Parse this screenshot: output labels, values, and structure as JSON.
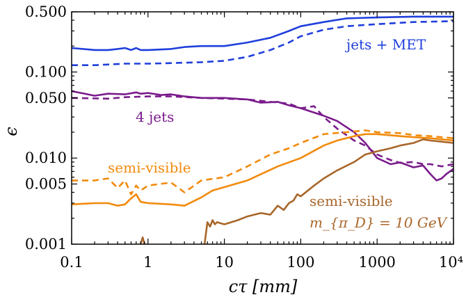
{
  "chart_data": {
    "type": "line",
    "title": "",
    "xlabel": "cτ [mm]",
    "ylabel": "ϵ",
    "xscale": "log",
    "yscale": "log",
    "xlim": [
      0.1,
      10000
    ],
    "ylim": [
      0.001,
      0.5
    ],
    "grid": false,
    "x_tick_labels": [
      "0.1",
      "1",
      "10",
      "100",
      "1000",
      "10⁴"
    ],
    "y_tick_labels": [
      "0.001",
      "0.005",
      "0.010",
      "0.050",
      "0.100",
      "0.500"
    ],
    "annotations": [
      {
        "text": "jets + MET",
        "color": "#1f3fdc"
      },
      {
        "text": "4 jets",
        "color": "#7a1b8c"
      },
      {
        "text": "semi-visible",
        "color": "#f28a0c"
      },
      {
        "text": "semi-visible",
        "color": "#a8662a"
      },
      {
        "text": "m_{π_D} = 10 GeV",
        "color": "#a8662a"
      }
    ],
    "series": [
      {
        "color": "#1f3fdc",
        "dash": "solid",
        "x": [
          0.1,
          0.2,
          0.3,
          0.4,
          0.5,
          0.6,
          0.7,
          0.8,
          1,
          2,
          3,
          5,
          10,
          20,
          40,
          70,
          100,
          200,
          400,
          1000,
          3000,
          10000
        ],
        "y": [
          0.19,
          0.18,
          0.18,
          0.185,
          0.19,
          0.18,
          0.19,
          0.18,
          0.18,
          0.185,
          0.195,
          0.2,
          0.2,
          0.22,
          0.25,
          0.3,
          0.34,
          0.38,
          0.42,
          0.43,
          0.44,
          0.44
        ]
      },
      {
        "color": "#1f3fdc",
        "dash": "dashed",
        "x": [
          0.1,
          0.2,
          0.5,
          1,
          2,
          5,
          10,
          20,
          40,
          70,
          100,
          200,
          400,
          1000,
          3000,
          10000
        ],
        "y": [
          0.12,
          0.12,
          0.125,
          0.125,
          0.127,
          0.13,
          0.135,
          0.15,
          0.18,
          0.22,
          0.26,
          0.31,
          0.34,
          0.36,
          0.38,
          0.39
        ]
      },
      {
        "color": "#7a1b8c",
        "dash": "solid",
        "x": [
          0.1,
          0.2,
          0.3,
          0.5,
          0.7,
          0.8,
          1,
          1.5,
          2,
          3,
          5,
          10,
          20,
          30,
          50,
          70,
          100,
          200,
          300,
          500,
          700,
          1000,
          1500,
          2000,
          3000,
          4000,
          5000,
          6000,
          7000,
          8000,
          10000
        ],
        "y": [
          0.06,
          0.053,
          0.056,
          0.055,
          0.058,
          0.056,
          0.057,
          0.054,
          0.055,
          0.052,
          0.05,
          0.05,
          0.048,
          0.044,
          0.045,
          0.041,
          0.038,
          0.031,
          0.027,
          0.02,
          0.015,
          0.01,
          0.0085,
          0.0089,
          0.0078,
          0.0082,
          0.0065,
          0.0055,
          0.0058,
          0.0065,
          0.0075
        ]
      },
      {
        "color": "#7a1b8c",
        "dash": "dashed",
        "x": [
          0.1,
          0.3,
          0.5,
          1,
          2,
          5,
          10,
          20,
          40,
          70,
          100,
          150,
          200,
          300,
          500,
          700,
          1000,
          1500,
          2000,
          3000,
          4000,
          5000,
          7000,
          10000
        ],
        "y": [
          0.05,
          0.049,
          0.051,
          0.052,
          0.052,
          0.05,
          0.049,
          0.048,
          0.045,
          0.043,
          0.038,
          0.04,
          0.03,
          0.022,
          0.016,
          0.014,
          0.011,
          0.0095,
          0.0088,
          0.009,
          0.0085,
          0.0085,
          0.008,
          0.0085
        ]
      },
      {
        "color": "#f28a0c",
        "dash": "solid",
        "x": [
          0.1,
          0.2,
          0.3,
          0.4,
          0.5,
          0.6,
          0.7,
          0.8,
          1,
          2,
          3,
          5,
          7,
          10,
          20,
          30,
          50,
          100,
          200,
          300,
          500,
          700,
          1000,
          2000,
          3000,
          5000,
          7000,
          10000
        ],
        "y": [
          0.0029,
          0.003,
          0.003,
          0.0028,
          0.0029,
          0.0034,
          0.0038,
          0.0031,
          0.003,
          0.0029,
          0.0028,
          0.0035,
          0.0042,
          0.0046,
          0.0055,
          0.0065,
          0.008,
          0.01,
          0.014,
          0.016,
          0.018,
          0.019,
          0.019,
          0.018,
          0.0175,
          0.017,
          0.0165,
          0.016
        ]
      },
      {
        "color": "#f28a0c",
        "dash": "dashed",
        "x": [
          0.1,
          0.2,
          0.3,
          0.4,
          0.5,
          0.6,
          0.7,
          0.8,
          1,
          2,
          3,
          5,
          10,
          20,
          40,
          70,
          100,
          200,
          400,
          700,
          1000,
          2000,
          3000,
          5000,
          7000,
          10000
        ],
        "y": [
          0.0055,
          0.0055,
          0.0058,
          0.0045,
          0.0055,
          0.0038,
          0.0048,
          0.0042,
          0.0048,
          0.0052,
          0.004,
          0.0055,
          0.006,
          0.008,
          0.011,
          0.013,
          0.015,
          0.019,
          0.02,
          0.021,
          0.02,
          0.0195,
          0.0185,
          0.018,
          0.0175,
          0.017
        ]
      },
      {
        "color": "#a8662a",
        "dash": "solid",
        "x": [
          0.8,
          0.85,
          0.9
        ],
        "y": [
          0.001,
          0.0012,
          0.001
        ]
      },
      {
        "color": "#a8662a",
        "dash": "solid",
        "x": [
          5.5,
          6,
          6.5,
          7,
          7.5,
          8,
          10,
          15,
          20,
          30,
          40,
          50,
          60,
          70,
          80,
          90,
          100,
          150,
          200,
          300,
          500,
          700,
          1000,
          1500,
          2000,
          3000,
          4000,
          5000,
          7000,
          10000
        ],
        "y": [
          0.001,
          0.0018,
          0.0016,
          0.0019,
          0.0017,
          0.0018,
          0.0017,
          0.0019,
          0.0021,
          0.0023,
          0.0022,
          0.0028,
          0.0025,
          0.003,
          0.0032,
          0.0038,
          0.0036,
          0.0048,
          0.0058,
          0.0072,
          0.009,
          0.011,
          0.012,
          0.013,
          0.014,
          0.015,
          0.0165,
          0.016,
          0.0155,
          0.015
        ]
      }
    ]
  }
}
